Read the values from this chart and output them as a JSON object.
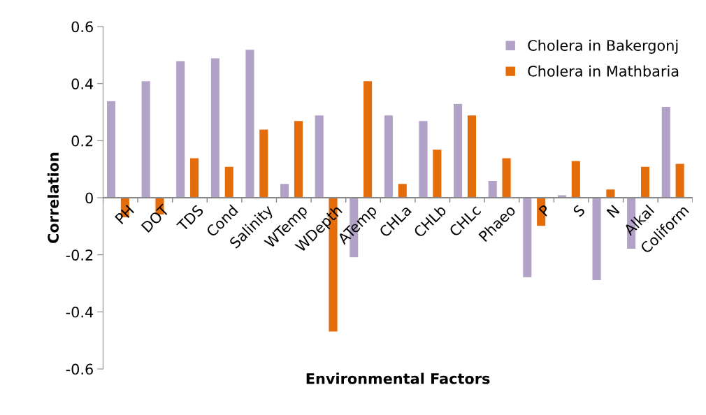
{
  "chart_data": {
    "type": "bar",
    "xlabel": "Environmental Factors",
    "ylabel": "Correlation",
    "categories": [
      "PH",
      "DOT",
      "TDS",
      "Cond",
      "Salinity",
      "WTemp",
      "WDepth",
      "ATemp",
      "CHLa",
      "CHLb",
      "CHLc",
      "Phaeo",
      "P",
      "S",
      "N",
      "Alkal",
      "Coliform"
    ],
    "series": [
      {
        "name": "Cholera in Bakergonj",
        "color": "#b3a2c7",
        "values": [
          0.34,
          0.41,
          0.48,
          0.49,
          0.52,
          0.05,
          0.29,
          -0.21,
          0.29,
          0.27,
          0.33,
          0.06,
          -0.28,
          0.01,
          -0.29,
          -0.18,
          0.32
        ]
      },
      {
        "name": "Cholera in Mathbaria",
        "color": "#e46c0a",
        "values": [
          -0.07,
          -0.06,
          0.14,
          0.11,
          0.24,
          0.27,
          -0.47,
          0.41,
          0.05,
          0.17,
          0.29,
          0.14,
          -0.1,
          0.13,
          0.03,
          0.11,
          0.12
        ]
      }
    ],
    "ylim": [
      -0.6,
      0.6
    ],
    "yticks": [
      {
        "value": -0.6,
        "label": "-0.6"
      },
      {
        "value": -0.4,
        "label": "-0.4"
      },
      {
        "value": -0.2,
        "label": "-0.2"
      },
      0,
      {
        "value": 0.2,
        "label": "0.2"
      },
      {
        "value": 0.4,
        "label": "0.4"
      },
      {
        "value": 0.6,
        "label": "0.6"
      }
    ],
    "grid": false,
    "legend": "top right"
  }
}
